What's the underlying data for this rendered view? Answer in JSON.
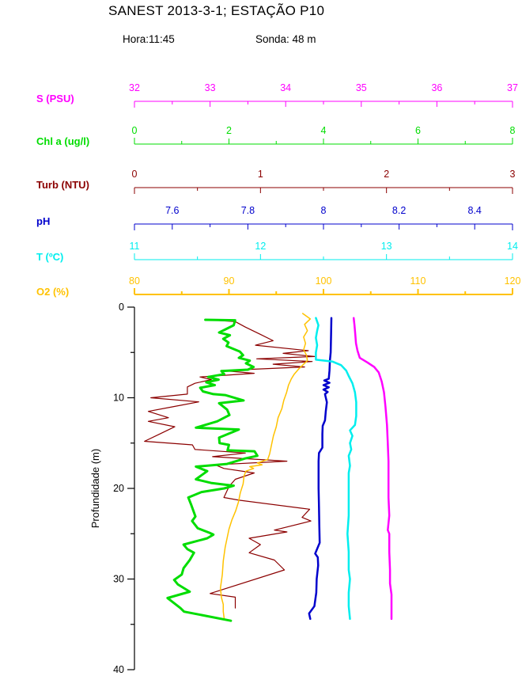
{
  "header": {
    "title": "SANEST 2013-3-1; ESTAÇÃO P10",
    "hora": "Hora:11:45",
    "sonda": "Sonda: 48 m"
  },
  "chart_data": {
    "type": "line",
    "title": "SANEST 2013-3-1; ESTAÇÃO P10",
    "depth_axis": {
      "label": "Profundidade (m)",
      "min": 0,
      "max": 40,
      "major_ticks": [
        0,
        10,
        20,
        30,
        40
      ],
      "major_labels": [
        "0",
        "10",
        "20",
        "30",
        "40"
      ],
      "minor_ticks": [
        5,
        15,
        25,
        35
      ],
      "color": "#000000"
    },
    "axes": [
      {
        "id": "S",
        "label": "S (PSU)",
        "color": "#FF00FF",
        "min": 32,
        "max": 37,
        "major_ticks": [
          32,
          33,
          34,
          35,
          36,
          37
        ],
        "tick_labels": [
          "32",
          "33",
          "34",
          "35",
          "36",
          "37"
        ],
        "minor_ticks": [
          32.5,
          33.5,
          34.5,
          35.5,
          36.5
        ],
        "tick_dir": "down",
        "line_width": 1
      },
      {
        "id": "Chl",
        "label": "Chl a (ug/l)",
        "color": "#00DD00",
        "min": 0,
        "max": 8,
        "major_ticks": [
          0,
          2,
          4,
          6,
          8
        ],
        "tick_labels": [
          "0",
          "2",
          "4",
          "6",
          "8"
        ],
        "minor_ticks": [
          1,
          3,
          5,
          7
        ],
        "tick_dir": "up",
        "line_width": 1
      },
      {
        "id": "Turb",
        "label": "Turb (NTU)",
        "color": "#8B0000",
        "min": 0,
        "max": 3,
        "major_ticks": [
          0,
          1,
          2,
          3
        ],
        "tick_labels": [
          "0",
          "1",
          "2",
          "3"
        ],
        "minor_ticks": [
          0.5,
          1.5,
          2.5
        ],
        "tick_dir": "down",
        "line_width": 1
      },
      {
        "id": "pH",
        "label": "pH",
        "color": "#0000CC",
        "min": 7.5,
        "max": 8.5,
        "major_ticks": [
          7.6,
          7.8,
          8,
          8.2,
          8.4
        ],
        "tick_labels": [
          "7.6",
          "7.8",
          "8",
          "8.2",
          "8.4"
        ],
        "minor_ticks": [
          7.7,
          7.9,
          8.1,
          8.3
        ],
        "tick_dir": "down",
        "line_width": 1
      },
      {
        "id": "T",
        "label": "T (ºC)",
        "color": "#00EEEE",
        "min": 11,
        "max": 14,
        "major_ticks": [
          11,
          12,
          13,
          14
        ],
        "tick_labels": [
          "11",
          "12",
          "13",
          "14"
        ],
        "minor_ticks": [
          11.5,
          12.5,
          13.5
        ],
        "tick_dir": "up",
        "line_width": 1
      },
      {
        "id": "O2",
        "label": "O2 (%)",
        "color": "#FFC200",
        "min": 80,
        "max": 120,
        "major_ticks": [
          80,
          90,
          100,
          110,
          120
        ],
        "tick_labels": [
          "80",
          "90",
          "100",
          "110",
          "120"
        ],
        "minor_ticks": [
          85,
          95,
          105,
          115
        ],
        "tick_dir": "up",
        "line_width": 2
      }
    ],
    "series": [
      {
        "name": "Turb",
        "axis": "Turb",
        "color": "#8B0000",
        "width": 1.2,
        "points": [
          [
            1.4,
            0.58
          ],
          [
            1.6,
            0.8
          ],
          [
            2.2,
            0.88
          ],
          [
            3.0,
            1.0
          ],
          [
            3.7,
            1.1
          ],
          [
            4.2,
            0.96
          ],
          [
            4.8,
            1.38
          ],
          [
            5.1,
            1.18
          ],
          [
            5.45,
            1.43
          ],
          [
            5.7,
            0.97
          ],
          [
            6.0,
            1.41
          ],
          [
            6.3,
            1.1
          ],
          [
            6.6,
            1.35
          ],
          [
            7.0,
            0.7
          ],
          [
            7.3,
            0.95
          ],
          [
            7.7,
            0.52
          ],
          [
            8.0,
            0.61
          ],
          [
            8.4,
            0.48
          ],
          [
            8.8,
            0.42
          ],
          [
            9.6,
            0.42
          ],
          [
            10.0,
            0.13
          ],
          [
            10.45,
            0.51
          ],
          [
            11.0,
            0.3
          ],
          [
            11.5,
            0.11
          ],
          [
            12.2,
            0.27
          ],
          [
            12.6,
            0.11
          ],
          [
            13.2,
            0.32
          ],
          [
            14.0,
            0.2
          ],
          [
            14.8,
            0.08
          ],
          [
            15.2,
            0.46
          ],
          [
            15.7,
            0.48
          ],
          [
            16.1,
            0.88
          ],
          [
            16.5,
            0.62
          ],
          [
            17.0,
            1.21
          ],
          [
            17.4,
            0.64
          ],
          [
            17.8,
            0.71
          ],
          [
            18.3,
            0.95
          ],
          [
            19.0,
            0.8
          ],
          [
            19.8,
            0.75
          ],
          [
            21.0,
            0.71
          ],
          [
            21.3,
            0.83
          ],
          [
            22.3,
            1.39
          ],
          [
            23.2,
            1.33
          ],
          [
            23.6,
            1.4
          ],
          [
            24.6,
            1.11
          ],
          [
            24.8,
            1.21
          ],
          [
            25.5,
            0.91
          ],
          [
            26.2,
            1.0
          ],
          [
            27.1,
            0.91
          ],
          [
            27.9,
            1.11
          ],
          [
            29.0,
            1.19
          ],
          [
            31.6,
            0.6
          ],
          [
            32.0,
            0.8
          ],
          [
            33.2,
            0.8
          ]
        ]
      },
      {
        "name": "O2",
        "axis": "O2",
        "color": "#FFC200",
        "width": 1.5,
        "points": [
          [
            0.7,
            97.8
          ],
          [
            1.3,
            98.6
          ],
          [
            1.9,
            98.0
          ],
          [
            2.6,
            98.3
          ],
          [
            3.3,
            97.9
          ],
          [
            4.0,
            98.1
          ],
          [
            4.7,
            97.9
          ],
          [
            5.3,
            98.2
          ],
          [
            5.9,
            98.3
          ],
          [
            6.3,
            97.9
          ],
          [
            6.8,
            97.4
          ],
          [
            7.4,
            96.9
          ],
          [
            7.9,
            96.6
          ],
          [
            8.6,
            96.3
          ],
          [
            9.4,
            96.1
          ],
          [
            10.3,
            95.8
          ],
          [
            11.2,
            95.6
          ],
          [
            12.2,
            95.2
          ],
          [
            13.2,
            95.0
          ],
          [
            14.2,
            94.7
          ],
          [
            15.2,
            94.5
          ],
          [
            16.2,
            94.3
          ],
          [
            16.8,
            94.1
          ],
          [
            17.2,
            93.0
          ],
          [
            17.4,
            93.5
          ],
          [
            17.6,
            92.2
          ],
          [
            17.8,
            92.6
          ],
          [
            18.1,
            91.8
          ],
          [
            18.6,
            91.6
          ],
          [
            19.5,
            91.5
          ],
          [
            20.5,
            91.2
          ],
          [
            21.5,
            91.0
          ],
          [
            22.5,
            90.7
          ],
          [
            23.5,
            90.3
          ],
          [
            24.5,
            90.0
          ],
          [
            25.5,
            89.8
          ],
          [
            26.5,
            89.6
          ],
          [
            28.0,
            89.4
          ],
          [
            29.5,
            89.3
          ],
          [
            31.0,
            89.1
          ],
          [
            32.0,
            89.2
          ],
          [
            32.8,
            89.4
          ],
          [
            33.6,
            89.4
          ],
          [
            34.4,
            89.5
          ]
        ]
      },
      {
        "name": "Chl a",
        "axis": "Chl",
        "color": "#00DD00",
        "width": 3,
        "points": [
          [
            1.4,
            1.5
          ],
          [
            1.45,
            2.13
          ],
          [
            2.0,
            2.1
          ],
          [
            2.8,
            1.79
          ],
          [
            3.1,
            2.02
          ],
          [
            3.5,
            1.88
          ],
          [
            3.9,
            1.99
          ],
          [
            4.3,
            1.95
          ],
          [
            4.9,
            2.23
          ],
          [
            5.3,
            2.3
          ],
          [
            5.6,
            2.21
          ],
          [
            5.9,
            2.44
          ],
          [
            6.2,
            2.36
          ],
          [
            6.6,
            2.52
          ],
          [
            6.9,
            2.4
          ],
          [
            7.05,
            1.84
          ],
          [
            7.4,
            1.9
          ],
          [
            7.7,
            1.56
          ],
          [
            8.0,
            1.78
          ],
          [
            8.3,
            1.52
          ],
          [
            8.6,
            1.7
          ],
          [
            8.9,
            1.39
          ],
          [
            9.3,
            1.45
          ],
          [
            9.6,
            1.67
          ],
          [
            9.7,
            1.92
          ],
          [
            10.3,
            2.31
          ],
          [
            10.6,
            1.79
          ],
          [
            11.3,
            1.96
          ],
          [
            11.9,
            2.01
          ],
          [
            12.6,
            1.75
          ],
          [
            13.3,
            1.3
          ],
          [
            13.5,
            2.21
          ],
          [
            14.4,
            1.79
          ],
          [
            15.0,
            1.8
          ],
          [
            15.2,
            2.0
          ],
          [
            15.8,
            1.97
          ],
          [
            15.9,
            2.54
          ],
          [
            16.4,
            2.6
          ],
          [
            16.7,
            2.34
          ],
          [
            17.3,
            1.96
          ],
          [
            17.6,
            1.3
          ],
          [
            18.1,
            1.54
          ],
          [
            19.0,
            1.3
          ],
          [
            19.4,
            1.62
          ],
          [
            19.7,
            2.1
          ],
          [
            20.0,
            1.9
          ],
          [
            20.4,
            1.42
          ],
          [
            21.0,
            1.14
          ],
          [
            21.8,
            1.2
          ],
          [
            23.1,
            1.29
          ],
          [
            23.6,
            1.22
          ],
          [
            24.4,
            1.34
          ],
          [
            24.9,
            1.59
          ],
          [
            25.1,
            1.67
          ],
          [
            25.5,
            1.54
          ],
          [
            26.2,
            1.04
          ],
          [
            26.7,
            1.12
          ],
          [
            27.1,
            1.26
          ],
          [
            27.9,
            1.17
          ],
          [
            28.8,
            1.04
          ],
          [
            29.5,
            1.0
          ],
          [
            30.1,
            0.84
          ],
          [
            30.6,
            0.92
          ],
          [
            31.4,
            1.17
          ],
          [
            32.1,
            0.7
          ],
          [
            32.3,
            0.75
          ],
          [
            33.2,
            0.97
          ],
          [
            33.6,
            1.05
          ],
          [
            34.6,
            2.04
          ]
        ]
      },
      {
        "name": "pH",
        "axis": "pH",
        "color": "#0000CC",
        "width": 2.5,
        "points": [
          [
            1.2,
            8.021
          ],
          [
            3.0,
            8.02
          ],
          [
            5.0,
            8.019
          ],
          [
            5.9,
            8.017
          ],
          [
            7.0,
            8.016
          ],
          [
            7.9,
            8.014
          ],
          [
            8.1,
            8.002
          ],
          [
            8.35,
            8.016
          ],
          [
            8.6,
            8.0
          ],
          [
            8.85,
            8.014
          ],
          [
            9.1,
            8.0
          ],
          [
            9.35,
            8.011
          ],
          [
            9.6,
            8.004
          ],
          [
            10.5,
            8.009
          ],
          [
            11.5,
            8.006
          ],
          [
            12.5,
            8.004
          ],
          [
            13.1,
            7.998
          ],
          [
            14.0,
            7.997
          ],
          [
            15.5,
            7.997
          ],
          [
            16.1,
            7.988
          ],
          [
            17.0,
            7.987
          ],
          [
            18.5,
            7.987
          ],
          [
            20.0,
            7.987
          ],
          [
            22.0,
            7.988
          ],
          [
            24.0,
            7.989
          ],
          [
            26.0,
            7.99
          ],
          [
            27.2,
            7.978
          ],
          [
            27.6,
            7.985
          ],
          [
            28.5,
            7.986
          ],
          [
            30.0,
            7.982
          ],
          [
            31.5,
            7.981
          ],
          [
            33.0,
            7.976
          ],
          [
            33.8,
            7.962
          ],
          [
            34.4,
            7.965
          ]
        ]
      },
      {
        "name": "T",
        "axis": "T",
        "color": "#00EEEE",
        "width": 2.5,
        "points": [
          [
            1.2,
            12.44
          ],
          [
            2.0,
            12.46
          ],
          [
            2.6,
            12.45
          ],
          [
            3.4,
            12.44
          ],
          [
            4.2,
            12.45
          ],
          [
            5.0,
            12.44
          ],
          [
            5.8,
            12.44
          ],
          [
            6.0,
            12.57
          ],
          [
            6.4,
            12.64
          ],
          [
            7.0,
            12.68
          ],
          [
            7.6,
            12.7
          ],
          [
            8.4,
            12.73
          ],
          [
            9.4,
            12.75
          ],
          [
            10.5,
            12.76
          ],
          [
            12.0,
            12.76
          ],
          [
            13.0,
            12.75
          ],
          [
            13.6,
            12.71
          ],
          [
            14.2,
            12.73
          ],
          [
            15.0,
            12.71
          ],
          [
            15.7,
            12.72
          ],
          [
            16.4,
            12.7
          ],
          [
            17.5,
            12.71
          ],
          [
            18.3,
            12.7
          ],
          [
            19.5,
            12.7
          ],
          [
            21.0,
            12.7
          ],
          [
            23.0,
            12.7
          ],
          [
            25.0,
            12.69
          ],
          [
            27.0,
            12.7
          ],
          [
            29.0,
            12.7
          ],
          [
            30.0,
            12.71
          ],
          [
            31.5,
            12.7
          ],
          [
            33.0,
            12.7
          ],
          [
            34.4,
            12.71
          ]
        ]
      },
      {
        "name": "S",
        "axis": "S",
        "color": "#FF00FF",
        "width": 2.5,
        "points": [
          [
            1.2,
            34.9
          ],
          [
            2.0,
            34.91
          ],
          [
            3.0,
            34.92
          ],
          [
            4.0,
            34.93
          ],
          [
            4.8,
            34.95
          ],
          [
            5.6,
            34.98
          ],
          [
            6.1,
            35.08
          ],
          [
            6.6,
            35.17
          ],
          [
            7.2,
            35.23
          ],
          [
            8.2,
            35.27
          ],
          [
            9.4,
            35.3
          ],
          [
            11.0,
            35.32
          ],
          [
            13.0,
            35.34
          ],
          [
            15.0,
            35.35
          ],
          [
            17.0,
            35.36
          ],
          [
            19.0,
            35.36
          ],
          [
            21.0,
            35.36
          ],
          [
            23.0,
            35.37
          ],
          [
            24.6,
            35.35
          ],
          [
            25.0,
            35.37
          ],
          [
            27.0,
            35.37
          ],
          [
            29.0,
            35.38
          ],
          [
            30.5,
            35.38
          ],
          [
            31.7,
            35.4
          ],
          [
            33.0,
            35.4
          ],
          [
            34.4,
            35.4
          ]
        ]
      }
    ]
  }
}
